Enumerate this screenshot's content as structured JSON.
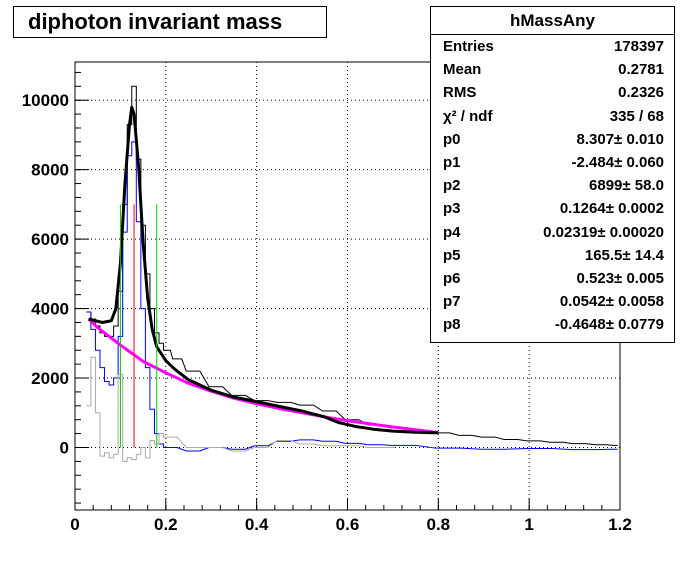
{
  "chart_data": {
    "type": "histogram",
    "title": "diphoton invariant mass",
    "xlim": [
      0,
      1.2
    ],
    "ylim": [
      -1800,
      11100
    ],
    "x_ticks": [
      "0",
      "0.2",
      "0.4",
      "0.6",
      "0.8",
      "1",
      "1.2"
    ],
    "y_ticks": [
      "0",
      "2000",
      "4000",
      "6000",
      "8000",
      "10000"
    ],
    "grid": true,
    "bin_width": 0.01,
    "series": [
      {
        "color": "#000000",
        "style": "histogram-step",
        "x": [
          0.03,
          0.04,
          0.05,
          0.06,
          0.07,
          0.08,
          0.09,
          0.1,
          0.11,
          0.12,
          0.13,
          0.14,
          0.15,
          0.16,
          0.17,
          0.18,
          0.19,
          0.2,
          0.22,
          0.25,
          0.3,
          0.35,
          0.4,
          0.45,
          0.5,
          0.55,
          0.6,
          0.65,
          0.7,
          0.75,
          0.8,
          0.85,
          0.9,
          0.95,
          1.0,
          1.05,
          1.1,
          1.15,
          1.19
        ],
        "y": [
          3900,
          3700,
          3500,
          3300,
          3200,
          3200,
          3500,
          4500,
          7000,
          9300,
          10400,
          8300,
          6400,
          5000,
          4000,
          3300,
          3000,
          2800,
          2550,
          2200,
          1750,
          1500,
          1350,
          1300,
          1220,
          1050,
          800,
          650,
          560,
          480,
          420,
          350,
          300,
          230,
          190,
          150,
          110,
          80,
          60
        ]
      },
      {
        "color": "#0000ff",
        "style": "histogram-step",
        "x": [
          0.03,
          0.04,
          0.05,
          0.06,
          0.07,
          0.08,
          0.09,
          0.1,
          0.11,
          0.12,
          0.13,
          0.14,
          0.15,
          0.16,
          0.17,
          0.18,
          0.19,
          0.2,
          0.25,
          0.3,
          0.35,
          0.4,
          0.45,
          0.5,
          0.55,
          0.6,
          0.65,
          0.7,
          0.8,
          0.9,
          1.0,
          1.1,
          1.19
        ],
        "y": [
          3900,
          3400,
          2800,
          2300,
          1900,
          1800,
          2000,
          3200,
          6200,
          8400,
          8800,
          6500,
          4000,
          2300,
          1100,
          400,
          100,
          0,
          -100,
          0,
          -50,
          50,
          180,
          220,
          180,
          120,
          80,
          60,
          -20,
          -50,
          -30,
          -60,
          -50
        ]
      },
      {
        "color": "#b0a8a0",
        "style": "histogram-step",
        "x": [
          0.03,
          0.04,
          0.05,
          0.06,
          0.07,
          0.08,
          0.09,
          0.1,
          0.11,
          0.12,
          0.13,
          0.14,
          0.15,
          0.16,
          0.17,
          0.18,
          0.19,
          0.2,
          0.25,
          0.3,
          0.35,
          0.4,
          0.45,
          0.5,
          0.55,
          0.6,
          0.65,
          0.7
        ],
        "y": [
          1200,
          2600,
          1000,
          -250,
          -150,
          -300,
          -200,
          2100,
          -400,
          -300,
          -350,
          -200,
          0,
          -300,
          200,
          100,
          400,
          300,
          0,
          0,
          -100,
          0,
          200,
          100,
          50,
          50,
          0,
          0
        ]
      },
      {
        "color": "#ff00ff",
        "style": "curve",
        "x": [
          0.03,
          0.05,
          0.1,
          0.15,
          0.2,
          0.25,
          0.3,
          0.35,
          0.4,
          0.45,
          0.5,
          0.55,
          0.6,
          0.65,
          0.7,
          0.75,
          0.8
        ],
        "y": [
          3700,
          3450,
          2950,
          2480,
          2150,
          1850,
          1620,
          1420,
          1260,
          1120,
          1000,
          880,
          770,
          680,
          590,
          510,
          430
        ]
      },
      {
        "color": "#000000",
        "style": "curve-thick",
        "x": [
          0.03,
          0.06,
          0.08,
          0.09,
          0.1,
          0.11,
          0.12,
          0.125,
          0.13,
          0.14,
          0.15,
          0.16,
          0.17,
          0.18,
          0.2,
          0.22,
          0.25,
          0.3,
          0.35,
          0.4,
          0.45,
          0.5,
          0.55,
          0.58,
          0.62,
          0.66,
          0.7,
          0.75,
          0.8
        ],
        "y": [
          3700,
          3600,
          3650,
          4000,
          5300,
          7600,
          9300,
          9800,
          9600,
          8100,
          5900,
          4300,
          3400,
          2900,
          2500,
          2250,
          1950,
          1650,
          1450,
          1320,
          1180,
          1050,
          880,
          720,
          600,
          520,
          470,
          440,
          420
        ]
      },
      {
        "color": "#00cc00",
        "style": "vline",
        "x": [
          0.1,
          0.18
        ],
        "y": [
          0,
          7000
        ]
      },
      {
        "color": "#ff0000",
        "style": "vline",
        "x": [
          0.13
        ],
        "y": [
          0,
          7000
        ]
      }
    ]
  },
  "stats": {
    "name": "hMassAny",
    "rows": [
      {
        "key": "Entries",
        "value": "178397"
      },
      {
        "key": "Mean",
        "value": "0.2781"
      },
      {
        "key": "RMS",
        "value": "0.2326"
      },
      {
        "key": "χ² / ndf",
        "value": "335 / 68"
      },
      {
        "key": "p0",
        "value": "8.307± 0.010"
      },
      {
        "key": "p1",
        "value": "-2.484± 0.060"
      },
      {
        "key": "p2",
        "value": "6899± 58.0"
      },
      {
        "key": "p3",
        "value": "0.1264± 0.0002"
      },
      {
        "key": "p4",
        "value": "0.02319± 0.00020"
      },
      {
        "key": "p5",
        "value": "165.5± 14.4"
      },
      {
        "key": "p6",
        "value": "0.523± 0.005"
      },
      {
        "key": "p7",
        "value": "0.0542± 0.0058"
      },
      {
        "key": "p8",
        "value": "-0.4648± 0.0779"
      }
    ]
  }
}
